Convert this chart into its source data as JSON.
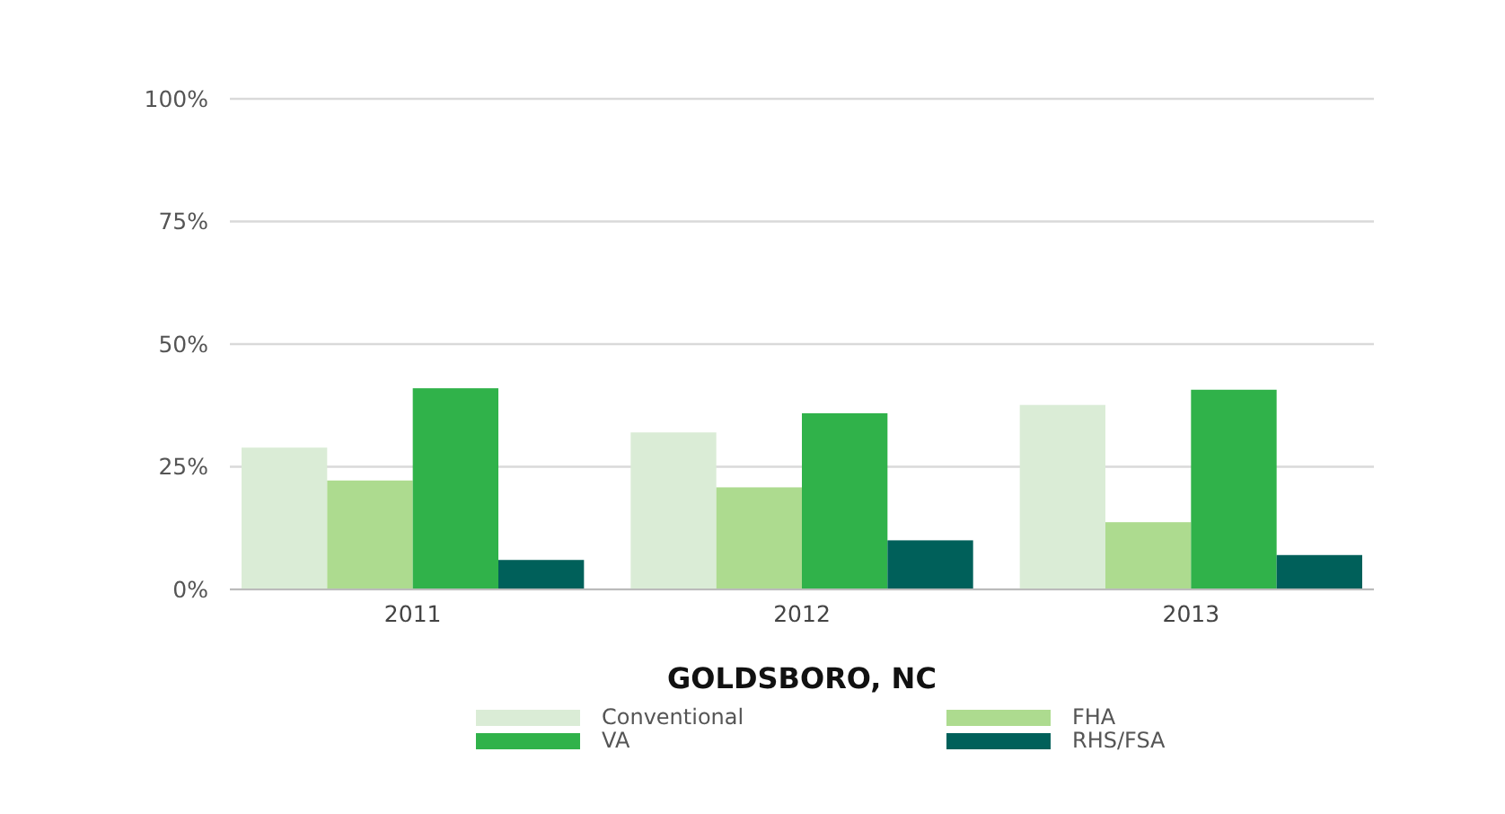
{
  "chart_data": {
    "type": "bar",
    "xlabel": "GOLDSBORO, NC",
    "categories": [
      "2011",
      "2012",
      "2013"
    ],
    "series": [
      {
        "name": "Conventional",
        "color": "#daecd6",
        "values": [
          28.9,
          32.0,
          37.6
        ]
      },
      {
        "name": "FHA",
        "color": "#addb8f",
        "values": [
          22.2,
          20.8,
          13.7
        ]
      },
      {
        "name": "VA",
        "color": "#30b24a",
        "values": [
          41.0,
          35.9,
          40.7
        ]
      },
      {
        "name": "RHS/FSA",
        "color": "#00605a",
        "values": [
          6.0,
          10.0,
          7.0
        ]
      }
    ],
    "ylim": [
      0,
      100
    ],
    "yticks": [
      {
        "value": 0,
        "label": "0%"
      },
      {
        "value": 25,
        "label": "25%"
      },
      {
        "value": 50,
        "label": "50%"
      },
      {
        "value": 75,
        "label": "75%"
      },
      {
        "value": 100,
        "label": "100%"
      }
    ],
    "grid": "y",
    "legend": "bottom"
  }
}
